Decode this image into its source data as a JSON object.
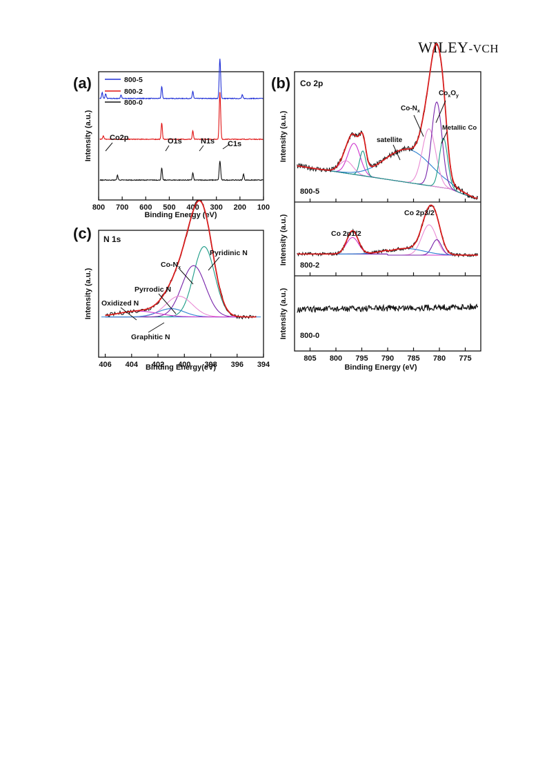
{
  "header": {
    "brand": "WILEY",
    "suffix": "-VCH"
  },
  "colors": {
    "blue": "#1f2fd6",
    "red": "#e01010",
    "black": "#111111",
    "fit_red": "#d81e1e",
    "magenta": "#cc33cc",
    "violet": "#7722aa",
    "teal": "#1a9a86",
    "lightblue": "#2a7fd0",
    "pink": "#e98ad4"
  },
  "panels": {
    "a": {
      "letter": "(a)",
      "xlabel": "Binding Energy (eV)",
      "ylabel": "Intensity (a.u.)",
      "ticks": [
        "800",
        "700",
        "600",
        "500",
        "400",
        "300",
        "200",
        "100"
      ],
      "legend": [
        "800-5",
        "800-2",
        "800-0"
      ],
      "annotations": [
        "Co2p",
        "O1s",
        "N1s",
        "C1s"
      ]
    },
    "b": {
      "letter": "(b)",
      "title": "Co 2p",
      "xlabel": "Binding Energy (eV)",
      "ylabel": "Intensity (a.u.)",
      "ticks": [
        "805",
        "800",
        "795",
        "790",
        "785",
        "780",
        "775"
      ],
      "subpanels": [
        "800-5",
        "800-2",
        "800-0"
      ],
      "annotations": {
        "satellite": "satellite",
        "conx": "Co-N",
        "conx_sub": "x",
        "coxoy_co": "Co",
        "coxoy_x": "x",
        "coxoy_o": "O",
        "coxoy_y": "y",
        "metallic": "Metallic Co",
        "p12": "Co 2p1/2",
        "p32": "Co 2p3/2"
      }
    },
    "c": {
      "letter": "(c)",
      "title": "N 1s",
      "xlabel": "Binding Energy(eV)",
      "ylabel": "Intensity (a.u.)",
      "ticks": [
        "406",
        "404",
        "402",
        "400",
        "398",
        "396",
        "394"
      ],
      "annotations": {
        "pyridinic": "Pyridinic N",
        "conx": "Co-N",
        "conx_sub": "x",
        "pyrrodic": "Pyrrodic N",
        "oxidized": "Oxidized N",
        "graphitic": "Graphitic N"
      }
    }
  },
  "chart_data": [
    {
      "type": "line",
      "panel": "a",
      "xlabel": "Binding Energy (eV)",
      "ylabel": "Intensity (a.u.)",
      "xlim": [
        800,
        100
      ],
      "series": [
        {
          "name": "800-5",
          "color": "#1f2fd6",
          "baseline": 0.8,
          "peaks": [
            [
              785,
              0.05
            ],
            [
              770,
              0.04
            ],
            [
              705,
              0.03
            ],
            [
              532,
              0.1
            ],
            [
              400,
              0.06
            ],
            [
              285,
              0.33
            ],
            [
              190,
              0.03
            ]
          ]
        },
        {
          "name": "800-2",
          "color": "#e01010",
          "baseline": 0.46,
          "peaks": [
            [
              780,
              0.03
            ],
            [
              532,
              0.14
            ],
            [
              400,
              0.07
            ],
            [
              285,
              0.39
            ]
          ]
        },
        {
          "name": "800-0",
          "color": "#111111",
          "baseline": 0.12,
          "peaks": [
            [
              720,
              0.04
            ],
            [
              532,
              0.1
            ],
            [
              400,
              0.06
            ],
            [
              285,
              0.16
            ],
            [
              185,
              0.05
            ]
          ]
        }
      ]
    },
    {
      "type": "line",
      "panel": "b",
      "xlabel": "Binding Energy (eV)",
      "ylabel": "Intensity (a.u.)",
      "xlim": [
        808,
        772
      ],
      "series": [
        {
          "name": "800-5 fit components",
          "components": [
            {
              "center": 796.5,
              "height": 0.3,
              "width": 1.2,
              "color": "#cc33cc"
            },
            {
              "center": 794.8,
              "height": 0.24,
              "width": 0.6,
              "color": "#1a9a86"
            },
            {
              "center": 798.0,
              "height": 0.12,
              "width": 1.3,
              "color": "#e98ad4"
            },
            {
              "center": 786.0,
              "height": 0.32,
              "width": 4.5,
              "color": "#2a7fd0"
            },
            {
              "center": 782.0,
              "height": 0.55,
              "width": 1.3,
              "color": "#e98ad4"
            },
            {
              "center": 780.5,
              "height": 0.82,
              "width": 1.0,
              "color": "#7722aa"
            },
            {
              "center": 779.2,
              "height": 0.48,
              "width": 0.8,
              "color": "#1a9a86"
            }
          ]
        },
        {
          "name": "800-2",
          "peaks": [
            [
              796.8,
              0.42
            ],
            [
              782.0,
              0.72
            ],
            [
              780.5,
              0.28
            ]
          ]
        },
        {
          "name": "800-0",
          "flat": true
        }
      ]
    },
    {
      "type": "line",
      "panel": "c",
      "xlabel": "Binding Energy(eV)",
      "ylabel": "Intensity (a.u.)",
      "xlim": [
        406.5,
        394
      ],
      "series": [
        {
          "name": "Pyridinic N",
          "center": 398.5,
          "height": 0.85,
          "width": 0.8,
          "color": "#1a9a86"
        },
        {
          "name": "Co-Nx",
          "center": 399.3,
          "height": 0.62,
          "width": 0.9,
          "color": "#7722aa"
        },
        {
          "name": "Pyrrodic N",
          "center": 400.4,
          "height": 0.25,
          "width": 1.0,
          "color": "#e98ad4"
        },
        {
          "name": "Graphitic N",
          "center": 401.0,
          "height": 0.1,
          "width": 1.0,
          "color": "#2a7fd0"
        },
        {
          "name": "Oxidized N",
          "center": 403.5,
          "height": 0.07,
          "width": 1.5,
          "color": "#cc33cc"
        }
      ]
    }
  ]
}
